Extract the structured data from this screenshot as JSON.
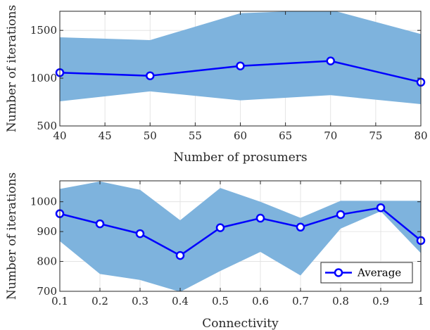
{
  "chart_data": [
    {
      "type": "line",
      "xlabel": "Number of prosumers",
      "ylabel": "Number of iterations",
      "xlim": [
        40,
        80
      ],
      "ylim": [
        500,
        1700
      ],
      "xticks": [
        40,
        45,
        50,
        55,
        60,
        65,
        70,
        75,
        80
      ],
      "xtick_labels": [
        "40",
        "45",
        "50",
        "55",
        "60",
        "65",
        "70",
        "75",
        "80"
      ],
      "yticks": [
        500,
        1000,
        1500
      ],
      "ytick_labels": [
        "500",
        "1000",
        "1500"
      ],
      "grid": true,
      "series": [
        {
          "x": [
            40,
            50,
            60,
            70,
            80
          ],
          "values": [
            1058,
            1025,
            1128,
            1180,
            958
          ],
          "lower": [
            758,
            862,
            768,
            822,
            728
          ],
          "upper": [
            1428,
            1398,
            1680,
            1715,
            1462
          ]
        }
      ]
    },
    {
      "type": "line",
      "xlabel": "Connectivity",
      "ylabel": "Number of iterations",
      "xlim": [
        0.1,
        1
      ],
      "ylim": [
        700,
        1070
      ],
      "xticks": [
        0.1,
        0.2,
        0.3,
        0.4,
        0.5,
        0.6,
        0.7,
        0.8,
        0.9,
        1
      ],
      "xtick_labels": [
        "0.1",
        "0.2",
        "0.3",
        "0.4",
        "0.5",
        "0.6",
        "0.7",
        "0.8",
        "0.9",
        "1"
      ],
      "yticks": [
        700,
        800,
        900,
        1000
      ],
      "ytick_labels": [
        "700",
        "800",
        "900",
        "1000"
      ],
      "grid": true,
      "legend": {
        "position": "bottom-right"
      },
      "series": [
        {
          "name": "Average",
          "x": [
            0.1,
            0.2,
            0.3,
            0.4,
            0.5,
            0.6,
            0.7,
            0.8,
            0.9,
            1
          ],
          "values": [
            960,
            926,
            893,
            820,
            913,
            945,
            915,
            957,
            980,
            870
          ],
          "lower": [
            868,
            758,
            738,
            698,
            768,
            832,
            753,
            910,
            968,
            828
          ],
          "upper": [
            1043,
            1068,
            1040,
            938,
            1046,
            1000,
            946,
            1003,
            1003,
            1003
          ]
        }
      ]
    }
  ],
  "colors": {
    "band": "#7eb3dd",
    "line": "#0000ff",
    "axis": "#262626",
    "grid": "#dfdfdf"
  }
}
